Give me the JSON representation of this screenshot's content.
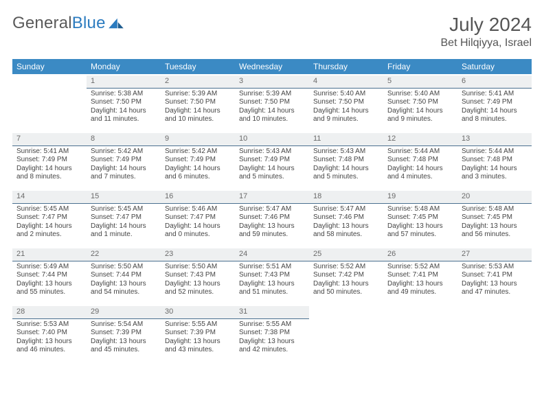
{
  "brand": {
    "part1": "General",
    "part2": "Blue"
  },
  "title": "July 2024",
  "location": "Bet Hilqiyya, Israel",
  "colors": {
    "header_bg": "#3b8ac4",
    "header_text": "#ffffff",
    "daynum_bg": "#eef0f1",
    "daynum_border": "#4a6f8f",
    "text": "#444444",
    "brand_gray": "#5a5a5a",
    "brand_blue": "#2b7bbf",
    "page_bg": "#ffffff"
  },
  "weekdays": [
    "Sunday",
    "Monday",
    "Tuesday",
    "Wednesday",
    "Thursday",
    "Friday",
    "Saturday"
  ],
  "weeks": [
    [
      null,
      {
        "n": "1",
        "sr": "Sunrise: 5:38 AM",
        "ss": "Sunset: 7:50 PM",
        "d1": "Daylight: 14 hours",
        "d2": "and 11 minutes."
      },
      {
        "n": "2",
        "sr": "Sunrise: 5:39 AM",
        "ss": "Sunset: 7:50 PM",
        "d1": "Daylight: 14 hours",
        "d2": "and 10 minutes."
      },
      {
        "n": "3",
        "sr": "Sunrise: 5:39 AM",
        "ss": "Sunset: 7:50 PM",
        "d1": "Daylight: 14 hours",
        "d2": "and 10 minutes."
      },
      {
        "n": "4",
        "sr": "Sunrise: 5:40 AM",
        "ss": "Sunset: 7:50 PM",
        "d1": "Daylight: 14 hours",
        "d2": "and 9 minutes."
      },
      {
        "n": "5",
        "sr": "Sunrise: 5:40 AM",
        "ss": "Sunset: 7:50 PM",
        "d1": "Daylight: 14 hours",
        "d2": "and 9 minutes."
      },
      {
        "n": "6",
        "sr": "Sunrise: 5:41 AM",
        "ss": "Sunset: 7:49 PM",
        "d1": "Daylight: 14 hours",
        "d2": "and 8 minutes."
      }
    ],
    [
      {
        "n": "7",
        "sr": "Sunrise: 5:41 AM",
        "ss": "Sunset: 7:49 PM",
        "d1": "Daylight: 14 hours",
        "d2": "and 8 minutes."
      },
      {
        "n": "8",
        "sr": "Sunrise: 5:42 AM",
        "ss": "Sunset: 7:49 PM",
        "d1": "Daylight: 14 hours",
        "d2": "and 7 minutes."
      },
      {
        "n": "9",
        "sr": "Sunrise: 5:42 AM",
        "ss": "Sunset: 7:49 PM",
        "d1": "Daylight: 14 hours",
        "d2": "and 6 minutes."
      },
      {
        "n": "10",
        "sr": "Sunrise: 5:43 AM",
        "ss": "Sunset: 7:49 PM",
        "d1": "Daylight: 14 hours",
        "d2": "and 5 minutes."
      },
      {
        "n": "11",
        "sr": "Sunrise: 5:43 AM",
        "ss": "Sunset: 7:48 PM",
        "d1": "Daylight: 14 hours",
        "d2": "and 5 minutes."
      },
      {
        "n": "12",
        "sr": "Sunrise: 5:44 AM",
        "ss": "Sunset: 7:48 PM",
        "d1": "Daylight: 14 hours",
        "d2": "and 4 minutes."
      },
      {
        "n": "13",
        "sr": "Sunrise: 5:44 AM",
        "ss": "Sunset: 7:48 PM",
        "d1": "Daylight: 14 hours",
        "d2": "and 3 minutes."
      }
    ],
    [
      {
        "n": "14",
        "sr": "Sunrise: 5:45 AM",
        "ss": "Sunset: 7:47 PM",
        "d1": "Daylight: 14 hours",
        "d2": "and 2 minutes."
      },
      {
        "n": "15",
        "sr": "Sunrise: 5:45 AM",
        "ss": "Sunset: 7:47 PM",
        "d1": "Daylight: 14 hours",
        "d2": "and 1 minute."
      },
      {
        "n": "16",
        "sr": "Sunrise: 5:46 AM",
        "ss": "Sunset: 7:47 PM",
        "d1": "Daylight: 14 hours",
        "d2": "and 0 minutes."
      },
      {
        "n": "17",
        "sr": "Sunrise: 5:47 AM",
        "ss": "Sunset: 7:46 PM",
        "d1": "Daylight: 13 hours",
        "d2": "and 59 minutes."
      },
      {
        "n": "18",
        "sr": "Sunrise: 5:47 AM",
        "ss": "Sunset: 7:46 PM",
        "d1": "Daylight: 13 hours",
        "d2": "and 58 minutes."
      },
      {
        "n": "19",
        "sr": "Sunrise: 5:48 AM",
        "ss": "Sunset: 7:45 PM",
        "d1": "Daylight: 13 hours",
        "d2": "and 57 minutes."
      },
      {
        "n": "20",
        "sr": "Sunrise: 5:48 AM",
        "ss": "Sunset: 7:45 PM",
        "d1": "Daylight: 13 hours",
        "d2": "and 56 minutes."
      }
    ],
    [
      {
        "n": "21",
        "sr": "Sunrise: 5:49 AM",
        "ss": "Sunset: 7:44 PM",
        "d1": "Daylight: 13 hours",
        "d2": "and 55 minutes."
      },
      {
        "n": "22",
        "sr": "Sunrise: 5:50 AM",
        "ss": "Sunset: 7:44 PM",
        "d1": "Daylight: 13 hours",
        "d2": "and 54 minutes."
      },
      {
        "n": "23",
        "sr": "Sunrise: 5:50 AM",
        "ss": "Sunset: 7:43 PM",
        "d1": "Daylight: 13 hours",
        "d2": "and 52 minutes."
      },
      {
        "n": "24",
        "sr": "Sunrise: 5:51 AM",
        "ss": "Sunset: 7:43 PM",
        "d1": "Daylight: 13 hours",
        "d2": "and 51 minutes."
      },
      {
        "n": "25",
        "sr": "Sunrise: 5:52 AM",
        "ss": "Sunset: 7:42 PM",
        "d1": "Daylight: 13 hours",
        "d2": "and 50 minutes."
      },
      {
        "n": "26",
        "sr": "Sunrise: 5:52 AM",
        "ss": "Sunset: 7:41 PM",
        "d1": "Daylight: 13 hours",
        "d2": "and 49 minutes."
      },
      {
        "n": "27",
        "sr": "Sunrise: 5:53 AM",
        "ss": "Sunset: 7:41 PM",
        "d1": "Daylight: 13 hours",
        "d2": "and 47 minutes."
      }
    ],
    [
      {
        "n": "28",
        "sr": "Sunrise: 5:53 AM",
        "ss": "Sunset: 7:40 PM",
        "d1": "Daylight: 13 hours",
        "d2": "and 46 minutes."
      },
      {
        "n": "29",
        "sr": "Sunrise: 5:54 AM",
        "ss": "Sunset: 7:39 PM",
        "d1": "Daylight: 13 hours",
        "d2": "and 45 minutes."
      },
      {
        "n": "30",
        "sr": "Sunrise: 5:55 AM",
        "ss": "Sunset: 7:39 PM",
        "d1": "Daylight: 13 hours",
        "d2": "and 43 minutes."
      },
      {
        "n": "31",
        "sr": "Sunrise: 5:55 AM",
        "ss": "Sunset: 7:38 PM",
        "d1": "Daylight: 13 hours",
        "d2": "and 42 minutes."
      },
      null,
      null,
      null
    ]
  ]
}
